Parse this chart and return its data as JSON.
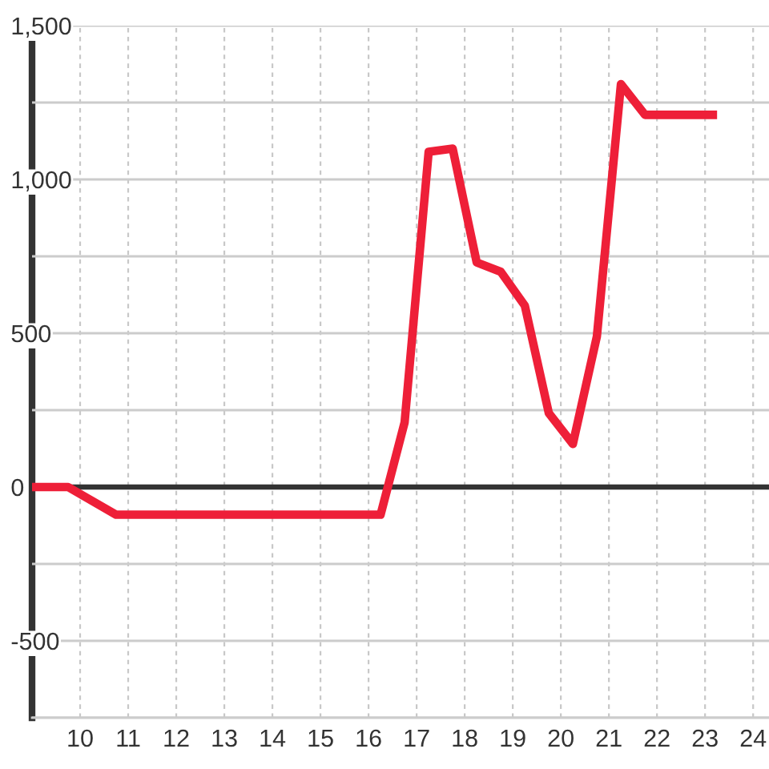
{
  "chart_data": {
    "type": "line",
    "x": [
      9.0,
      9.75,
      10.75,
      16.25,
      16.75,
      17.25,
      17.75,
      18.25,
      18.75,
      19.25,
      19.75,
      20.25,
      20.75,
      21.25,
      21.75,
      23.25
    ],
    "series": [
      {
        "color": "#ee1f38",
        "values": [
          0,
          0,
          -90,
          -90,
          210,
          1090,
          1100,
          730,
          700,
          590,
          240,
          140,
          490,
          1310,
          1210,
          1210
        ]
      }
    ],
    "xlim": [
      9.0,
      24.33
    ],
    "xticks": [
      10,
      11,
      12,
      13,
      14,
      15,
      16,
      17,
      18,
      19,
      20,
      21,
      22,
      23,
      24
    ],
    "ylim": [
      -750,
      1500
    ],
    "yticks": [
      {
        "value": -750,
        "label": null
      },
      -500,
      {
        "value": -250,
        "label": null
      },
      0,
      {
        "value": 250,
        "label": null
      },
      500,
      {
        "value": 750,
        "label": null
      },
      {
        "value": 1000,
        "label": "1,000"
      },
      {
        "value": 1250,
        "label": null
      },
      {
        "value": 1500,
        "label": "1,500"
      }
    ],
    "grid": true,
    "ref_lines": [
      {
        "axis": "y",
        "value": 0,
        "color": "#333333"
      }
    ],
    "marker": "none",
    "line_style": "solid",
    "legend": false
  }
}
